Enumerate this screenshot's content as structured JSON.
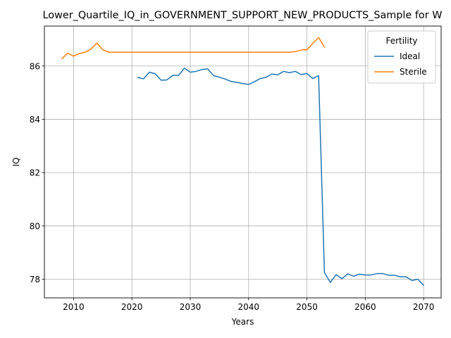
{
  "chart_data": {
    "type": "line",
    "title": "Lower_Quartile_IQ_in_GOVERNMENT_SUPPORT_NEW_PRODUCTS_Sample for W",
    "xlabel": "Years",
    "ylabel": "IQ",
    "xlim": [
      2005,
      2073
    ],
    "ylim": [
      77.3,
      87.5
    ],
    "xticks": [
      2010,
      2020,
      2030,
      2040,
      2050,
      2060,
      2070
    ],
    "yticks": [
      78,
      80,
      82,
      84,
      86
    ],
    "grid": true,
    "legend": {
      "title": "Fertility",
      "placement": "upper right"
    },
    "series": [
      {
        "name": "Ideal",
        "color": "#1f77b4",
        "x": [
          2021,
          2022,
          2023,
          2024,
          2025,
          2026,
          2027,
          2028,
          2029,
          2030,
          2031,
          2032,
          2033,
          2034,
          2035,
          2036,
          2037,
          2038,
          2039,
          2040,
          2041,
          2042,
          2043,
          2044,
          2045,
          2046,
          2047,
          2048,
          2049,
          2050,
          2051,
          2052,
          2053,
          2054,
          2055,
          2056,
          2057,
          2058,
          2059,
          2060,
          2061,
          2062,
          2063,
          2064,
          2065,
          2066,
          2067,
          2068,
          2069,
          2070
        ],
        "y": [
          85.57,
          85.52,
          85.77,
          85.71,
          85.47,
          85.48,
          85.65,
          85.65,
          85.92,
          85.77,
          85.8,
          85.87,
          85.89,
          85.64,
          85.58,
          85.51,
          85.42,
          85.39,
          85.34,
          85.31,
          85.41,
          85.53,
          85.58,
          85.7,
          85.67,
          85.8,
          85.75,
          85.8,
          85.68,
          85.72,
          85.53,
          85.64,
          78.25,
          77.88,
          78.17,
          78.02,
          78.2,
          78.11,
          78.19,
          78.16,
          78.16,
          78.21,
          78.21,
          78.15,
          78.15,
          78.09,
          78.09,
          77.95,
          78.0,
          77.77
        ]
      },
      {
        "name": "Sterile",
        "color": "#ff7f0e",
        "x": [
          2008,
          2009,
          2010,
          2011,
          2012,
          2013,
          2014,
          2015,
          2016,
          2017,
          2018,
          2019,
          2020,
          2021,
          2022,
          2023,
          2024,
          2025,
          2026,
          2027,
          2028,
          2029,
          2030,
          2031,
          2032,
          2033,
          2034,
          2035,
          2036,
          2037,
          2038,
          2039,
          2040,
          2041,
          2042,
          2043,
          2044,
          2045,
          2046,
          2047,
          2048,
          2049,
          2050,
          2051,
          2052,
          2053
        ],
        "y": [
          86.28,
          86.48,
          86.37,
          86.47,
          86.52,
          86.64,
          86.86,
          86.61,
          86.52,
          86.52,
          86.52,
          86.52,
          86.52,
          86.52,
          86.52,
          86.52,
          86.52,
          86.52,
          86.52,
          86.52,
          86.52,
          86.52,
          86.52,
          86.52,
          86.52,
          86.52,
          86.52,
          86.52,
          86.52,
          86.52,
          86.52,
          86.52,
          86.52,
          86.52,
          86.52,
          86.52,
          86.52,
          86.52,
          86.52,
          86.52,
          86.54,
          86.6,
          86.61,
          86.85,
          87.07,
          86.71
        ]
      }
    ]
  }
}
